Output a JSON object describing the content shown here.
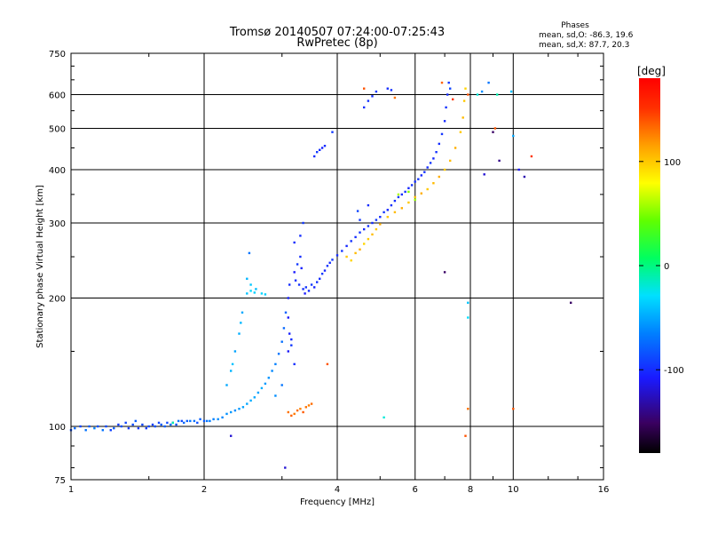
{
  "header": {
    "title": "Tromsø 20140507 07:24:00-07:25:43",
    "subtitle": "RwPretec (8p)",
    "phases_title": "Phases",
    "phases_o": "mean, sd,O: -86.3, 19.6",
    "phases_x": "mean, sd,X: 87.7, 20.3"
  },
  "colorbar": {
    "label": "[deg]",
    "ticks": [
      {
        "value": 100,
        "label": "100"
      },
      {
        "value": 0,
        "label": "0"
      },
      {
        "value": -100,
        "label": "-100"
      }
    ],
    "range": [
      -180,
      180
    ]
  },
  "chart_data": {
    "type": "scatter",
    "title": "Tromsø 20140507 07:24:00-07:25:43",
    "subtitle": "RwPretec (8p)",
    "xlabel": "Frequency [MHz]",
    "ylabel": "Stationary phase Virtual Height [km]",
    "xscale": "log",
    "yscale": "log",
    "xlim": [
      1,
      16
    ],
    "ylim": [
      75,
      750
    ],
    "xticks": [
      {
        "value": 1,
        "label": "1"
      },
      {
        "value": 2,
        "label": "2"
      },
      {
        "value": 4,
        "label": "4"
      },
      {
        "value": 6,
        "label": "6"
      },
      {
        "value": 8,
        "label": "8"
      },
      {
        "value": 10,
        "label": "10"
      },
      {
        "value": 16,
        "label": "16"
      }
    ],
    "yticks": [
      {
        "value": 75,
        "label": "75"
      },
      {
        "value": 100,
        "label": "100"
      },
      {
        "value": 200,
        "label": "200"
      },
      {
        "value": 300,
        "label": "300"
      },
      {
        "value": 400,
        "label": "400"
      },
      {
        "value": 500,
        "label": "500"
      },
      {
        "value": 600,
        "label": "600"
      },
      {
        "value": 750,
        "label": "750"
      }
    ],
    "grid": true,
    "series": [
      {
        "points": [
          [
            1.0,
            98,
            -85
          ],
          [
            1.02,
            99,
            -75
          ],
          [
            1.05,
            100,
            -90
          ],
          [
            1.08,
            98,
            -70
          ],
          [
            1.1,
            100,
            -80
          ],
          [
            1.13,
            99,
            -65
          ],
          [
            1.15,
            100,
            -85
          ],
          [
            1.18,
            98,
            -70
          ],
          [
            1.2,
            100,
            -88
          ],
          [
            1.23,
            98,
            -92
          ],
          [
            1.25,
            99,
            -80
          ],
          [
            1.28,
            101,
            -95
          ],
          [
            1.3,
            100,
            -85
          ],
          [
            1.33,
            102,
            -90
          ],
          [
            1.35,
            99,
            -95
          ],
          [
            1.38,
            101,
            -88
          ],
          [
            1.4,
            103,
            -80
          ],
          [
            1.42,
            99,
            -96
          ],
          [
            1.45,
            101,
            -90
          ],
          [
            1.48,
            99,
            -94
          ],
          [
            1.5,
            100,
            -88
          ],
          [
            1.53,
            101,
            -92
          ],
          [
            1.55,
            100,
            -85
          ],
          [
            1.58,
            102,
            -90
          ],
          [
            1.6,
            101,
            -82
          ],
          [
            1.63,
            100,
            -78
          ],
          [
            1.65,
            102,
            -88
          ],
          [
            1.68,
            101,
            -72
          ],
          [
            1.7,
            102,
            -90
          ],
          [
            1.73,
            101,
            -85
          ],
          [
            1.75,
            103,
            -70
          ],
          [
            1.78,
            103,
            -88
          ],
          [
            1.8,
            102,
            -75
          ],
          [
            1.83,
            103,
            -80
          ],
          [
            1.86,
            103,
            -70
          ],
          [
            1.9,
            103,
            -72
          ],
          [
            1.93,
            102,
            -85
          ],
          [
            1.96,
            104,
            -78
          ],
          [
            2.0,
            103,
            -80
          ],
          [
            2.03,
            103,
            -70
          ],
          [
            2.06,
            103,
            -66
          ],
          [
            2.1,
            104,
            -65
          ],
          [
            2.15,
            104,
            -60
          ],
          [
            2.2,
            105,
            -62
          ],
          [
            2.25,
            107,
            -58
          ],
          [
            2.3,
            108,
            -55
          ],
          [
            2.35,
            109,
            -60
          ],
          [
            2.4,
            110,
            -55
          ],
          [
            2.45,
            111,
            -52
          ],
          [
            2.5,
            113,
            -50
          ],
          [
            2.55,
            115,
            -48
          ],
          [
            2.6,
            117,
            -50
          ],
          [
            2.65,
            120,
            -52
          ],
          [
            2.7,
            123,
            -48
          ],
          [
            2.75,
            126,
            -55
          ],
          [
            2.8,
            130,
            -58
          ],
          [
            2.85,
            135,
            -62
          ],
          [
            2.9,
            140,
            -65
          ],
          [
            2.95,
            148,
            -70
          ],
          [
            3.0,
            158,
            -72
          ],
          [
            3.03,
            170,
            -75
          ],
          [
            3.06,
            185,
            -78
          ],
          [
            2.9,
            118,
            -60
          ],
          [
            3.0,
            125,
            -70
          ]
        ]
      },
      {
        "points": [
          [
            2.25,
            125,
            -50
          ],
          [
            2.3,
            135,
            -45
          ],
          [
            2.32,
            140,
            -40
          ],
          [
            2.35,
            150,
            -52
          ],
          [
            2.4,
            165,
            -48
          ],
          [
            2.42,
            175,
            -44
          ],
          [
            2.44,
            185,
            -50
          ],
          [
            2.5,
            205,
            -40
          ],
          [
            2.55,
            208,
            -30
          ],
          [
            2.6,
            206,
            -35
          ],
          [
            2.62,
            210,
            -42
          ],
          [
            2.5,
            222,
            -45
          ],
          [
            2.55,
            215,
            -38
          ],
          [
            2.7,
            205,
            -32
          ],
          [
            2.75,
            204,
            -35
          ],
          [
            2.53,
            255,
            -70
          ]
        ]
      },
      {
        "points": [
          [
            3.1,
            180,
            -110
          ],
          [
            3.12,
            165,
            -105
          ],
          [
            3.15,
            160,
            -100
          ],
          [
            3.1,
            150,
            -110
          ],
          [
            3.2,
            140,
            -100
          ],
          [
            3.15,
            155,
            -95
          ],
          [
            3.1,
            200,
            -105
          ],
          [
            3.12,
            215,
            -100
          ],
          [
            3.2,
            230,
            -108
          ],
          [
            3.22,
            220,
            -100
          ],
          [
            3.25,
            240,
            -95
          ],
          [
            3.3,
            250,
            -100
          ],
          [
            3.32,
            235,
            -105
          ],
          [
            3.28,
            215,
            -98
          ],
          [
            3.35,
            210,
            -100
          ],
          [
            3.38,
            205,
            -108
          ],
          [
            3.4,
            212,
            -96
          ],
          [
            3.45,
            208,
            -100
          ],
          [
            3.5,
            215,
            -95
          ],
          [
            3.55,
            212,
            -104
          ],
          [
            3.6,
            218,
            -98
          ],
          [
            3.65,
            222,
            -100
          ],
          [
            3.7,
            228,
            -95
          ],
          [
            3.75,
            232,
            -102
          ],
          [
            3.8,
            238,
            -98
          ],
          [
            3.85,
            242,
            -100
          ],
          [
            3.9,
            246,
            -95
          ],
          [
            4.0,
            252,
            -100
          ],
          [
            4.1,
            258,
            -96
          ],
          [
            4.2,
            265,
            -102
          ],
          [
            4.3,
            272,
            -98
          ],
          [
            4.4,
            278,
            -100
          ],
          [
            4.5,
            285,
            -96
          ],
          [
            4.6,
            290,
            -102
          ],
          [
            4.7,
            295,
            -98
          ],
          [
            4.8,
            300,
            -100
          ],
          [
            4.9,
            305,
            -95
          ],
          [
            5.0,
            310,
            -100
          ],
          [
            5.1,
            318,
            -96
          ],
          [
            5.2,
            322,
            -102
          ],
          [
            5.3,
            330,
            -98
          ],
          [
            5.4,
            338,
            -100
          ],
          [
            5.5,
            345,
            -95
          ],
          [
            5.6,
            350,
            -100
          ],
          [
            5.7,
            355,
            -96
          ],
          [
            5.8,
            362,
            -102
          ],
          [
            5.9,
            368,
            -98
          ],
          [
            6.0,
            375,
            -100
          ],
          [
            6.1,
            380,
            -96
          ],
          [
            6.2,
            388,
            -102
          ],
          [
            6.3,
            395,
            -98
          ],
          [
            6.4,
            405,
            -100
          ],
          [
            6.5,
            415,
            -96
          ],
          [
            6.6,
            425,
            -102
          ],
          [
            6.7,
            440,
            -98
          ],
          [
            6.8,
            460,
            -100
          ],
          [
            6.9,
            485,
            -96
          ],
          [
            7.0,
            520,
            -102
          ],
          [
            7.05,
            560,
            -98
          ],
          [
            7.1,
            600,
            -100
          ],
          [
            7.15,
            640,
            -96
          ],
          [
            7.2,
            620,
            -90
          ],
          [
            3.3,
            280,
            -100
          ],
          [
            3.35,
            300,
            -95
          ],
          [
            3.2,
            270,
            -100
          ],
          [
            4.45,
            320,
            -90
          ],
          [
            4.5,
            305,
            -95
          ],
          [
            4.7,
            330,
            -100
          ]
        ]
      },
      {
        "points": [
          [
            3.55,
            430,
            -100
          ],
          [
            3.6,
            440,
            -95
          ],
          [
            3.65,
            445,
            -100
          ],
          [
            3.7,
            450,
            -105
          ],
          [
            3.75,
            455,
            -100
          ],
          [
            3.9,
            490,
            -95
          ],
          [
            4.6,
            560,
            -100
          ],
          [
            4.7,
            580,
            -98
          ],
          [
            4.8,
            595,
            -100
          ],
          [
            4.9,
            610,
            -95
          ],
          [
            5.2,
            620,
            -100
          ],
          [
            5.3,
            615,
            -98
          ]
        ]
      },
      {
        "points": [
          [
            4.2,
            250,
            100
          ],
          [
            4.3,
            245,
            95
          ],
          [
            4.4,
            255,
            105
          ],
          [
            4.5,
            260,
            110
          ],
          [
            4.6,
            268,
            95
          ],
          [
            4.7,
            275,
            100
          ],
          [
            4.8,
            282,
            105
          ],
          [
            4.9,
            290,
            100
          ],
          [
            5.0,
            298,
            110
          ],
          [
            5.2,
            310,
            100
          ],
          [
            5.4,
            318,
            105
          ],
          [
            5.6,
            325,
            110
          ],
          [
            5.8,
            335,
            100
          ],
          [
            6.0,
            345,
            105
          ],
          [
            6.2,
            352,
            110
          ],
          [
            6.4,
            360,
            100
          ],
          [
            6.6,
            372,
            105
          ],
          [
            6.8,
            385,
            110
          ],
          [
            7.0,
            400,
            100
          ],
          [
            7.2,
            420,
            105
          ],
          [
            7.4,
            450,
            110
          ],
          [
            7.6,
            490,
            100
          ],
          [
            7.7,
            530,
            105
          ],
          [
            7.75,
            580,
            100
          ],
          [
            7.8,
            620,
            95
          ],
          [
            5.5,
            350,
            60
          ],
          [
            5.8,
            355,
            50
          ],
          [
            6.0,
            340,
            55
          ]
        ]
      },
      {
        "points": [
          [
            3.1,
            108,
            130
          ],
          [
            3.15,
            106,
            135
          ],
          [
            3.2,
            107,
            128
          ],
          [
            3.25,
            109,
            132
          ],
          [
            3.3,
            110,
            125
          ],
          [
            3.35,
            108,
            138
          ],
          [
            3.4,
            111,
            130
          ],
          [
            3.45,
            112,
            126
          ],
          [
            3.5,
            113,
            132
          ],
          [
            4.6,
            620,
            140
          ],
          [
            5.4,
            590,
            130
          ],
          [
            6.9,
            640,
            135
          ],
          [
            7.3,
            585,
            150
          ],
          [
            7.9,
            600,
            140
          ],
          [
            7.8,
            95,
            140
          ],
          [
            7.9,
            110,
            130
          ],
          [
            11.0,
            430,
            150
          ],
          [
            9.1,
            500,
            140
          ],
          [
            10.0,
            110,
            140
          ],
          [
            3.8,
            140,
            140
          ]
        ]
      },
      {
        "points": [
          [
            7.9,
            195,
            -40
          ],
          [
            7.9,
            180,
            -30
          ],
          [
            8.5,
            610,
            -60
          ],
          [
            8.3,
            600,
            -20
          ],
          [
            9.9,
            610,
            -40
          ],
          [
            10.0,
            480,
            -50
          ],
          [
            9.2,
            600,
            -10
          ],
          [
            8.8,
            640,
            -70
          ],
          [
            5.1,
            105,
            -20
          ],
          [
            1.7,
            102,
            -10
          ]
        ]
      },
      {
        "points": [
          [
            3.05,
            80,
            -120
          ],
          [
            2.3,
            95,
            -120
          ],
          [
            7.0,
            230,
            -150
          ],
          [
            9.0,
            490,
            -150
          ],
          [
            9.3,
            420,
            -140
          ],
          [
            10.3,
            400,
            -110
          ],
          [
            10.6,
            385,
            -130
          ],
          [
            13.5,
            195,
            -150
          ],
          [
            8.6,
            390,
            -120
          ]
        ]
      }
    ]
  }
}
